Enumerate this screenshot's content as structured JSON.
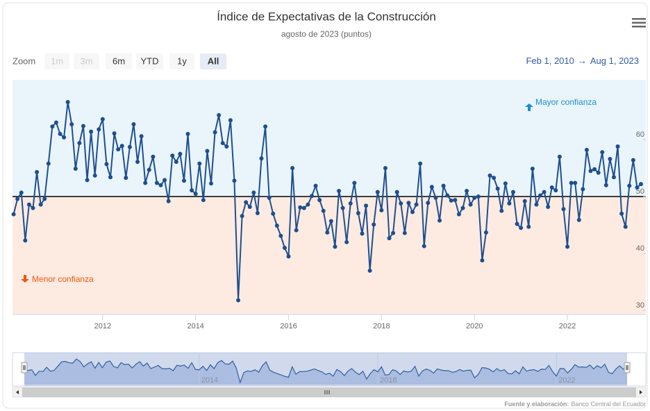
{
  "chart_data": {
    "type": "line",
    "title": "Índice de Expectativas de la Construcción",
    "subtitle": "agosto de 2023 (puntos)",
    "range_selector": {
      "label": "Zoom",
      "buttons": [
        "1m",
        "3m",
        "6m",
        "YTD",
        "1y",
        "All"
      ],
      "selected": 5,
      "disabled": [
        0,
        1
      ]
    },
    "date_range": {
      "from": "Feb 1, 2010",
      "separator": "→",
      "to": "Aug 1, 2023"
    },
    "annotations": [
      {
        "text": "Mayor confianza",
        "color": "#1a8fcc"
      },
      {
        "text": "Menor confianza",
        "color": "#f0560e"
      }
    ],
    "threshold": 50,
    "band_colors": {
      "above": "#eaf4fb",
      "below": "#fdebe2"
    },
    "color": "#1d4f8f",
    "xlim": [
      "2010-02",
      "2023-08"
    ],
    "xticks": [
      2012,
      2014,
      2016,
      2018,
      2020,
      2022
    ],
    "navigator_xticks": [
      2014,
      2018,
      2022
    ],
    "ylim": [
      29.3,
      70.5
    ],
    "yticks": [
      30,
      40,
      50,
      60
    ],
    "x": [
      "2010-02",
      "2010-03",
      "2010-04",
      "2010-05",
      "2010-06",
      "2010-07",
      "2010-08",
      "2010-09",
      "2010-10",
      "2010-11",
      "2010-12",
      "2011-01",
      "2011-02",
      "2011-03",
      "2011-04",
      "2011-05",
      "2011-06",
      "2011-07",
      "2011-08",
      "2011-09",
      "2011-10",
      "2011-11",
      "2011-12",
      "2012-01",
      "2012-02",
      "2012-03",
      "2012-04",
      "2012-05",
      "2012-06",
      "2012-07",
      "2012-08",
      "2012-09",
      "2012-10",
      "2012-11",
      "2012-12",
      "2013-01",
      "2013-02",
      "2013-03",
      "2013-04",
      "2013-05",
      "2013-06",
      "2013-07",
      "2013-08",
      "2013-09",
      "2013-10",
      "2013-11",
      "2013-12",
      "2014-01",
      "2014-02",
      "2014-03",
      "2014-04",
      "2014-05",
      "2014-06",
      "2014-07",
      "2014-08",
      "2014-09",
      "2014-10",
      "2014-11",
      "2014-12",
      "2015-01",
      "2015-02",
      "2015-03",
      "2015-04",
      "2015-05",
      "2015-06",
      "2015-07",
      "2015-08",
      "2015-09",
      "2015-10",
      "2015-11",
      "2015-12",
      "2016-01",
      "2016-02",
      "2016-03",
      "2016-04",
      "2016-05",
      "2016-06",
      "2016-07",
      "2016-08",
      "2016-09",
      "2016-10",
      "2016-11",
      "2016-12",
      "2017-01",
      "2017-02",
      "2017-03",
      "2017-04",
      "2017-05",
      "2017-06",
      "2017-07",
      "2017-08",
      "2017-09",
      "2017-10",
      "2017-11",
      "2017-12",
      "2018-01",
      "2018-02",
      "2018-03",
      "2018-04",
      "2018-05",
      "2018-06",
      "2018-07",
      "2018-08",
      "2018-09",
      "2018-10",
      "2018-11",
      "2018-12",
      "2019-01",
      "2019-02",
      "2019-03",
      "2019-04",
      "2019-05",
      "2019-06",
      "2019-07",
      "2019-08",
      "2019-09",
      "2019-10",
      "2019-11",
      "2019-12",
      "2020-01",
      "2020-02",
      "2020-03",
      "2020-04",
      "2020-05",
      "2020-06",
      "2020-07",
      "2020-08",
      "2020-09",
      "2020-10",
      "2020-11",
      "2020-12",
      "2021-01",
      "2021-02",
      "2021-03",
      "2021-04",
      "2021-05",
      "2021-06",
      "2021-07",
      "2021-08",
      "2021-09",
      "2021-10",
      "2021-11",
      "2021-12",
      "2022-01",
      "2022-02",
      "2022-03",
      "2022-04",
      "2022-05",
      "2022-06",
      "2022-07",
      "2022-08",
      "2022-09",
      "2022-10",
      "2022-11",
      "2022-12",
      "2023-01",
      "2023-02",
      "2023-03",
      "2023-04",
      "2023-05",
      "2023-06",
      "2023-07",
      "2023-08"
    ],
    "values": [
      46.9,
      49.6,
      50.7,
      42.3,
      48.6,
      48,
      54.3,
      48.6,
      49.6,
      55.8,
      62.3,
      63,
      61,
      60.4,
      66.6,
      62.7,
      54.9,
      59.4,
      62.4,
      52.9,
      61.4,
      53.7,
      61.8,
      63.6,
      55.7,
      53.4,
      61.1,
      58.3,
      58.9,
      53.3,
      58.7,
      62.7,
      56.1,
      60.6,
      52.4,
      54.7,
      57,
      52.4,
      52,
      52.9,
      49.2,
      57.2,
      56.1,
      57.5,
      52.8,
      61,
      51.1,
      50.5,
      55.8,
      49.4,
      58,
      52.3,
      61.3,
      64.3,
      59.4,
      58.8,
      63.4,
      52.8,
      31.8,
      46.6,
      49,
      48.2,
      50.7,
      47.1,
      56.7,
      62.3,
      49.8,
      47,
      44.9,
      43.1,
      41,
      39.5,
      55,
      44.1,
      48.1,
      48,
      48.6,
      50.1,
      51.9,
      49.4,
      47.5,
      43.7,
      45.7,
      41.2,
      51,
      48,
      42,
      48.8,
      52.4,
      47.1,
      43.5,
      48.4,
      37,
      45.1,
      50.8,
      47.6,
      55,
      42.7,
      43.6,
      50.8,
      48.8,
      43.6,
      48.9,
      47.3,
      48.6,
      55.8,
      41.3,
      48.9,
      51.7,
      49.8,
      45.8,
      51.9,
      50.2,
      49.3,
      49.4,
      46.9,
      48,
      51,
      48.6,
      49.8,
      50,
      38.8,
      43.7,
      53.7,
      53.3,
      51.4,
      47.5,
      52.3,
      48.8,
      50.8,
      45.2,
      44.5,
      49.2,
      44.7,
      54.9,
      48.6,
      50.2,
      50.8,
      48.2,
      51.6,
      51.1,
      57,
      47.8,
      41.2,
      52.4,
      52.4,
      45.9,
      51.3,
      58.2,
      54.5,
      54.8,
      54.2,
      57.8,
      52,
      56.6,
      53.4,
      58.8,
      47,
      44.7,
      51.9,
      56.4,
      51.6,
      52.2
    ],
    "credits": {
      "label": "Fuente y elaboración:",
      "text": "Banco Central del Ecuador"
    }
  }
}
